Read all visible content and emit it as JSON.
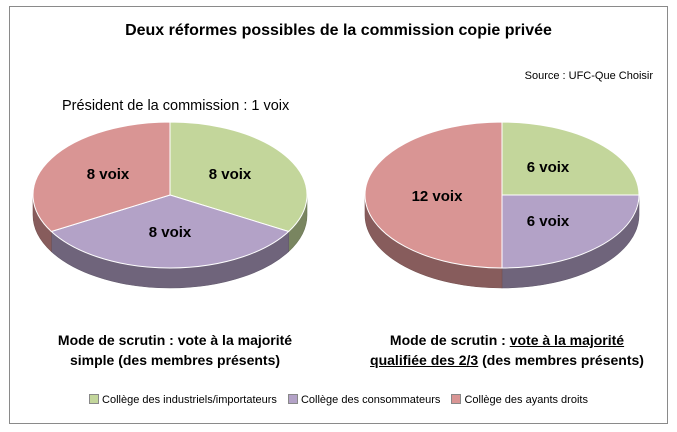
{
  "title": "Deux réformes possibles de la commission copie privée",
  "source": "Source : UFC-Que Choisir",
  "president_note": "Président de la commission : 1 voix",
  "colors": {
    "industriels": "#c3d69b",
    "consommateurs": "#b3a2c7",
    "ayants_droits": "#d99594"
  },
  "chart_data": [
    {
      "type": "pie",
      "slices": [
        {
          "name": "Collège des industriels/importateurs",
          "key": "industriels",
          "value": 8,
          "label": "8 voix"
        },
        {
          "name": "Collège des consommateurs",
          "key": "consommateurs",
          "value": 8,
          "label": "8 voix"
        },
        {
          "name": "Collège des ayants droits",
          "key": "ayants_droits",
          "value": 8,
          "label": "8 voix"
        }
      ],
      "caption": {
        "prefix": "Mode de scrutin : ",
        "emphasis": "vote à la majorité",
        "rest": "simple (des membres présents)"
      }
    },
    {
      "type": "pie",
      "slices": [
        {
          "name": "Collège des industriels/importateurs",
          "key": "industriels",
          "value": 6,
          "label": "6 voix"
        },
        {
          "name": "Collège des consommateurs",
          "key": "consommateurs",
          "value": 6,
          "label": "6 voix"
        },
        {
          "name": "Collège des ayants droits",
          "key": "ayants_droits",
          "value": 12,
          "label": "12 voix"
        }
      ],
      "caption": {
        "prefix": "Mode de scrutin : ",
        "emphasis": "vote à la majorité",
        "emphasis2": "qualifiée des 2/3",
        "rest": " (des membres présents)"
      }
    }
  ],
  "legend": [
    {
      "key": "industriels",
      "label": "Collège des industriels/importateurs"
    },
    {
      "key": "consommateurs",
      "label": "Collège des consommateurs"
    },
    {
      "key": "ayants_droits",
      "label": "Collège des ayants droits"
    }
  ]
}
